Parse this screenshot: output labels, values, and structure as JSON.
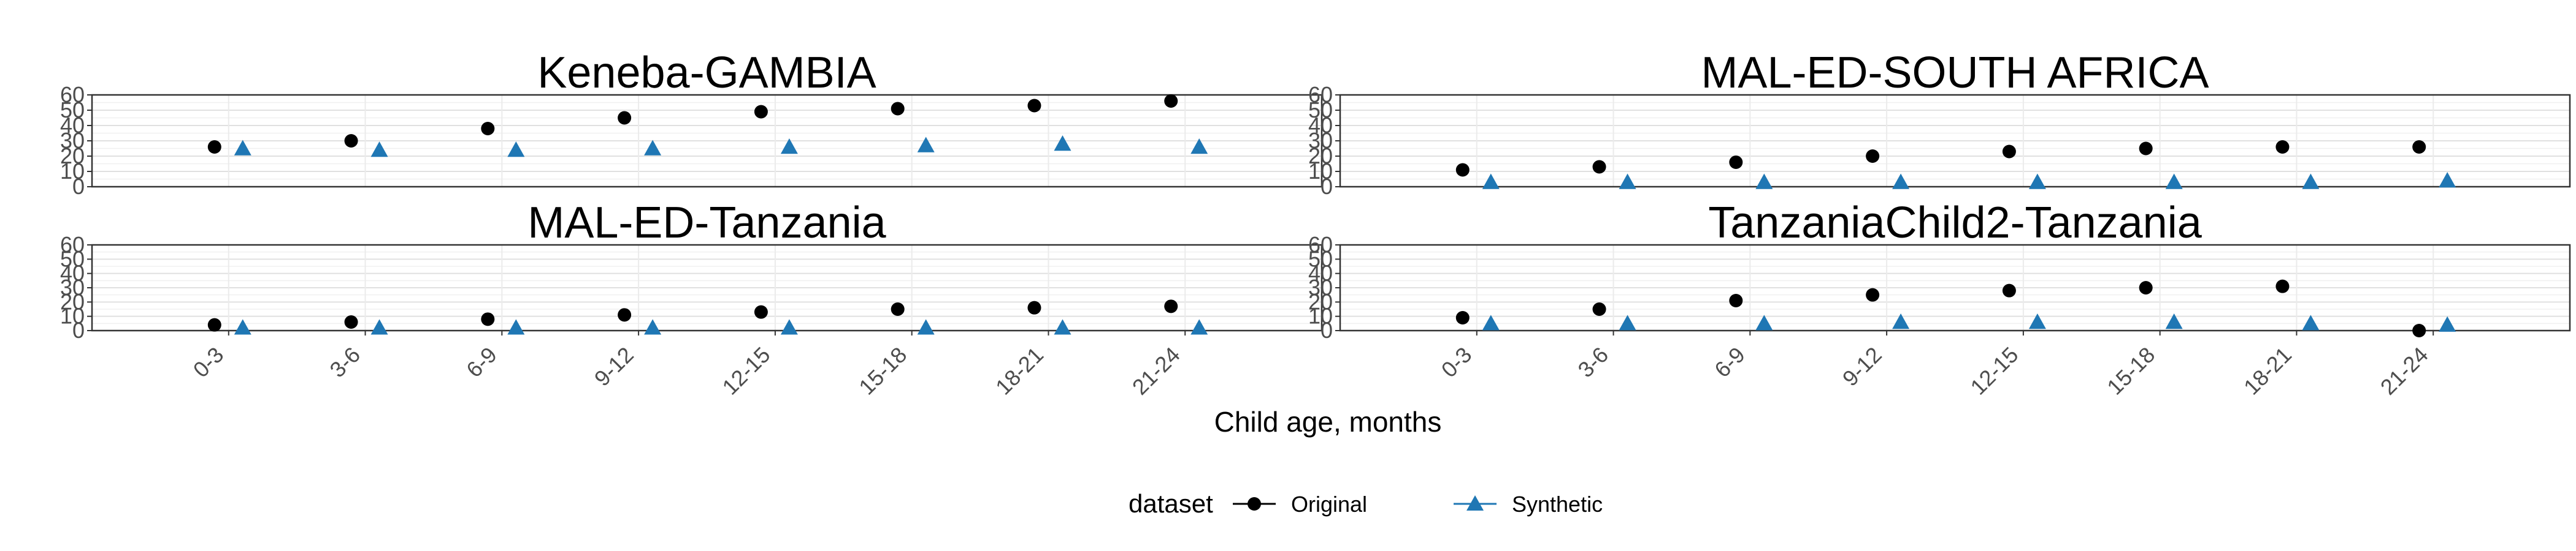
{
  "chart_data": {
    "type": "scatter",
    "xlabel": "Child age, months",
    "ylabel": "",
    "ylim": [
      0,
      60
    ],
    "y_ticks": [
      "0",
      "10",
      "20",
      "30",
      "40",
      "50",
      "60"
    ],
    "categories": [
      "0-3",
      "3-6",
      "6-9",
      "9-12",
      "12-15",
      "15-18",
      "18-21",
      "21-24"
    ],
    "legend": {
      "title": "dataset",
      "position": "bottom",
      "entries": [
        {
          "name": "Original",
          "color": "#000000",
          "shape": "circle"
        },
        {
          "name": "Synthetic",
          "color": "#1f77b4",
          "shape": "triangle"
        }
      ]
    },
    "panels": [
      {
        "title": "Keneba-GAMBIA",
        "series": [
          {
            "name": "Original",
            "values": [
              26,
              30,
              38,
              45,
              49,
              51,
              53,
              56
            ]
          },
          {
            "name": "Synthetic",
            "values": [
              25,
              24,
              24,
              25,
              26,
              27,
              28,
              26
            ]
          }
        ]
      },
      {
        "title": "MAL-ED-SOUTH AFRICA",
        "series": [
          {
            "name": "Original",
            "values": [
              11,
              13,
              16,
              20,
              23,
              25,
              26,
              26
            ]
          },
          {
            "name": "Synthetic",
            "values": [
              3,
              3,
              3,
              3,
              3,
              3,
              3,
              4
            ]
          }
        ]
      },
      {
        "title": "MAL-ED-Tanzania",
        "series": [
          {
            "name": "Original",
            "values": [
              4,
              6,
              8,
              11,
              13,
              15,
              16,
              17
            ]
          },
          {
            "name": "Synthetic",
            "values": [
              2,
              2,
              2,
              2,
              2,
              2,
              2,
              2
            ]
          }
        ]
      },
      {
        "title": "TanzaniaChild2-Tanzania",
        "series": [
          {
            "name": "Original",
            "values": [
              9,
              15,
              21,
              25,
              28,
              30,
              31,
              0
            ]
          },
          {
            "name": "Synthetic",
            "values": [
              5,
              5,
              5,
              6,
              6,
              6,
              5,
              4
            ]
          }
        ]
      }
    ]
  }
}
